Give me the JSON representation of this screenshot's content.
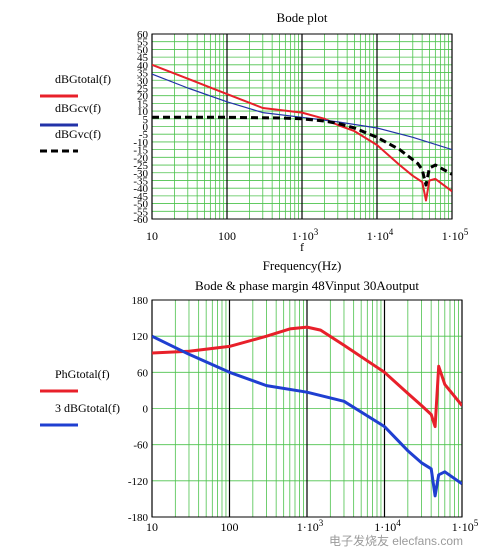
{
  "chart_data": [
    {
      "type": "line",
      "title": "Bode plot",
      "xlabel_var": "f",
      "xlabel": "Frequency(Hz)",
      "xscale": "log",
      "xlim": [
        10,
        100000
      ],
      "ylim": [
        -60,
        60
      ],
      "xticks": [
        10,
        100,
        1000,
        10000,
        100000
      ],
      "xtick_labels": [
        "10",
        "100",
        "1·10",
        "1·10",
        "1·10"
      ],
      "xtick_exponents": [
        "",
        "",
        "3",
        "4",
        "5"
      ],
      "yticks": [
        60,
        55,
        50,
        45,
        40,
        35,
        30,
        25,
        20,
        15,
        10,
        5,
        0,
        -5,
        -10,
        -15,
        -20,
        -25,
        -30,
        -35,
        -40,
        -45,
        -50,
        -55,
        -60
      ],
      "grid": true,
      "legend_position": "left",
      "series": [
        {
          "name": "dBGtotal(f)",
          "color": "#e8202a",
          "style": "solid",
          "x": [
            10,
            30,
            100,
            300,
            1000,
            2000,
            3000,
            5000,
            10000,
            20000,
            30000,
            40000,
            45000,
            50000,
            60000,
            100000
          ],
          "y": [
            40,
            31,
            21,
            12,
            9,
            5,
            1,
            -3,
            -12,
            -25,
            -32,
            -36,
            -48,
            -35,
            -34,
            -42
          ]
        },
        {
          "name": "dBGcv(f)",
          "color": "#2232a8",
          "style": "solid",
          "x": [
            10,
            30,
            100,
            300,
            1000,
            3000,
            10000,
            30000,
            100000
          ],
          "y": [
            34,
            25,
            16,
            9,
            6,
            3,
            -1,
            -7,
            -15
          ]
        },
        {
          "name": "dBGvc(f)",
          "color": "#000000",
          "style": "dashed",
          "x": [
            10,
            100,
            500,
            1000,
            2000,
            3000,
            5000,
            10000,
            20000,
            35000,
            40000,
            45000,
            50000,
            60000,
            100000
          ],
          "y": [
            6,
            6,
            5.5,
            5,
            3.5,
            2,
            -1,
            -7,
            -15,
            -24,
            -28,
            -38,
            -27,
            -25,
            -31
          ]
        }
      ]
    },
    {
      "type": "line",
      "title": "Bode & phase margin 48Vinput 30Aoutput",
      "xscale": "log",
      "xlim": [
        10,
        100000
      ],
      "ylim": [
        -180,
        180
      ],
      "xticks": [
        10,
        100,
        1000,
        10000,
        100000
      ],
      "xtick_labels": [
        "10",
        "100",
        "1·10",
        "1·10",
        "1·10"
      ],
      "xtick_exponents": [
        "",
        "",
        "3",
        "4",
        "5"
      ],
      "yticks": [
        180,
        120,
        60,
        0,
        -60,
        -120,
        -180
      ],
      "grid": true,
      "legend_position": "left",
      "series": [
        {
          "name": "PhGtotal(f)",
          "color": "#e8202a",
          "style": "solid",
          "x": [
            10,
            30,
            100,
            300,
            600,
            1000,
            1500,
            3000,
            10000,
            20000,
            30000,
            40000,
            45000,
            50000,
            60000,
            100000
          ],
          "y": [
            92,
            95,
            103,
            120,
            132,
            135,
            130,
            105,
            60,
            25,
            5,
            -10,
            -30,
            70,
            40,
            5
          ]
        },
        {
          "name": "3 dBGtotal(f)",
          "color": "#1f3fd1",
          "style": "solid",
          "x": [
            10,
            30,
            100,
            300,
            1000,
            3000,
            10000,
            20000,
            30000,
            40000,
            45000,
            50000,
            60000,
            100000
          ],
          "y": [
            120,
            90,
            60,
            38,
            27,
            12,
            -30,
            -70,
            -90,
            -100,
            -145,
            -110,
            -105,
            -125
          ]
        }
      ]
    }
  ],
  "watermark": "电子发烧友 elecfans.com"
}
